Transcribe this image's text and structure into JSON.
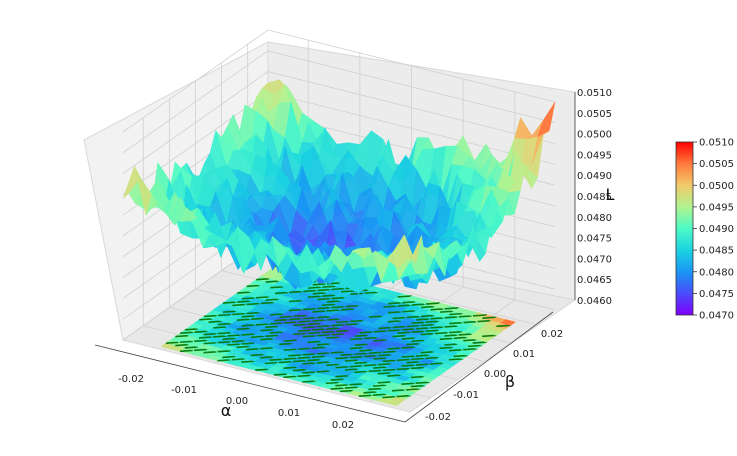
{
  "chart_data": {
    "type": "surface3d",
    "title": "",
    "xlabel": "α",
    "ylabel": "β",
    "zlabel": "L",
    "xlim": [
      -0.028,
      0.028
    ],
    "ylim": [
      -0.028,
      0.028
    ],
    "zlim": [
      0.046,
      0.051
    ],
    "x_ticks": [
      "-0.02",
      "-0.01",
      "0.00",
      "0.01",
      "0.02"
    ],
    "y_ticks": [
      "-0.02",
      "-0.01",
      "0.00",
      "0.01",
      "0.02"
    ],
    "z_ticks": [
      "0.0460",
      "0.0465",
      "0.0470",
      "0.0475",
      "0.0480",
      "0.0485",
      "0.0490",
      "0.0495",
      "0.0500",
      "0.0505",
      "0.0510"
    ],
    "grid": true,
    "colormap": "rainbow",
    "contour_color": "#0a7d12",
    "colorbar": {
      "range": [
        0.047,
        0.051
      ],
      "ticks": [
        "0.0470",
        "0.0475",
        "0.0480",
        "0.0485",
        "0.0490",
        "0.0495",
        "0.0500",
        "0.0505",
        "0.0510"
      ]
    },
    "surface_description_values": {
      "minimum_L_near_origin": 0.0477,
      "maximum_L_corner": 0.051
    }
  }
}
